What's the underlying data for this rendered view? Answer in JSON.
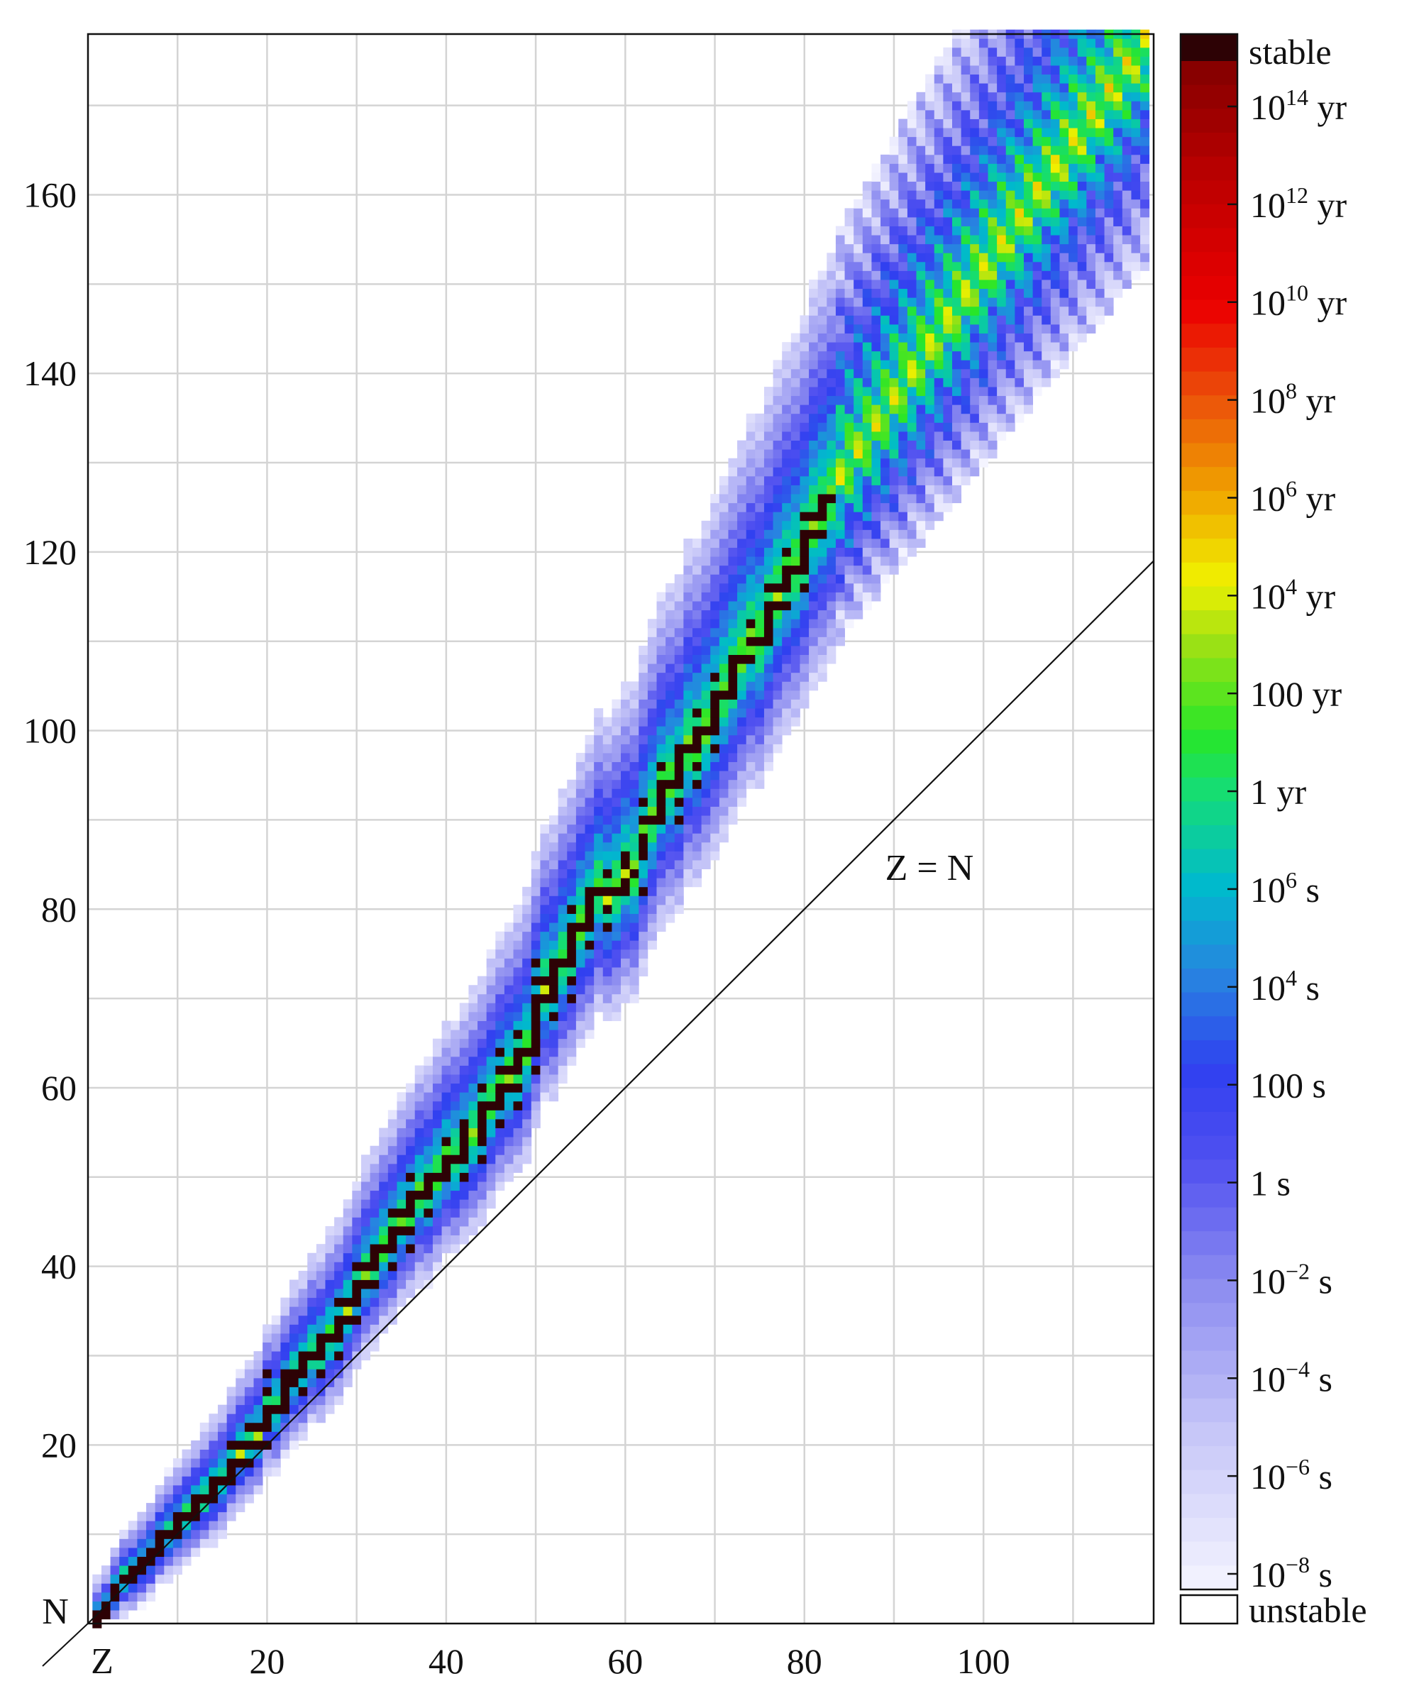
{
  "chart_data": {
    "type": "heatmap",
    "title": "",
    "xlabel": "Z",
    "ylabel": "N",
    "x_ticks": [
      20,
      40,
      60,
      80,
      100
    ],
    "y_ticks": [
      20,
      40,
      60,
      80,
      100,
      120,
      140,
      160
    ],
    "xlim": [
      0,
      119
    ],
    "ylim": [
      0,
      178
    ],
    "grid": true,
    "annotation": "Z = N",
    "reference_line": {
      "label": "Z = N",
      "from": [
        0,
        0
      ],
      "to": [
        119,
        119
      ]
    },
    "colorbar": {
      "position": "right",
      "top_label": "stable",
      "bottom_label": "unstable",
      "labels": [
        {
          "base": "10",
          "exp": "14",
          "unit": "yr"
        },
        {
          "base": "10",
          "exp": "12",
          "unit": "yr"
        },
        {
          "base": "10",
          "exp": "10",
          "unit": "yr"
        },
        {
          "base": "10",
          "exp": "8",
          "unit": "yr"
        },
        {
          "base": "10",
          "exp": "6",
          "unit": "yr"
        },
        {
          "base": "10",
          "exp": "4",
          "unit": "yr"
        },
        {
          "base": "100",
          "exp": "",
          "unit": "yr"
        },
        {
          "base": "1",
          "exp": "",
          "unit": "yr"
        },
        {
          "base": "10",
          "exp": "6",
          "unit": "s"
        },
        {
          "base": "10",
          "exp": "4",
          "unit": "s"
        },
        {
          "base": "100",
          "exp": "",
          "unit": "s"
        },
        {
          "base": "1",
          "exp": "",
          "unit": "s"
        },
        {
          "base": "10",
          "exp": "−2",
          "unit": "s"
        },
        {
          "base": "10",
          "exp": "−4",
          "unit": "s"
        },
        {
          "base": "10",
          "exp": "−6",
          "unit": "s"
        },
        {
          "base": "10",
          "exp": "−8",
          "unit": "s"
        }
      ]
    },
    "stable_nuclides": [
      [
        1,
        0
      ],
      [
        1,
        1
      ],
      [
        2,
        1
      ],
      [
        2,
        2
      ],
      [
        3,
        3
      ],
      [
        3,
        4
      ],
      [
        4,
        5
      ],
      [
        5,
        5
      ],
      [
        5,
        6
      ],
      [
        6,
        6
      ],
      [
        6,
        7
      ],
      [
        7,
        7
      ],
      [
        7,
        8
      ],
      [
        8,
        8
      ],
      [
        8,
        9
      ],
      [
        8,
        10
      ],
      [
        9,
        10
      ],
      [
        10,
        10
      ],
      [
        10,
        11
      ],
      [
        10,
        12
      ],
      [
        11,
        12
      ],
      [
        12,
        12
      ],
      [
        12,
        13
      ],
      [
        12,
        14
      ],
      [
        13,
        14
      ],
      [
        14,
        14
      ],
      [
        14,
        15
      ],
      [
        14,
        16
      ],
      [
        15,
        16
      ],
      [
        16,
        16
      ],
      [
        16,
        17
      ],
      [
        16,
        18
      ],
      [
        16,
        20
      ],
      [
        17,
        18
      ],
      [
        17,
        20
      ],
      [
        18,
        18
      ],
      [
        18,
        20
      ],
      [
        18,
        22
      ],
      [
        19,
        20
      ],
      [
        19,
        22
      ],
      [
        20,
        20
      ],
      [
        20,
        22
      ],
      [
        20,
        23
      ],
      [
        20,
        24
      ],
      [
        20,
        26
      ],
      [
        20,
        28
      ],
      [
        21,
        24
      ],
      [
        22,
        24
      ],
      [
        22,
        25
      ],
      [
        22,
        26
      ],
      [
        22,
        27
      ],
      [
        22,
        28
      ],
      [
        23,
        27
      ],
      [
        23,
        28
      ],
      [
        24,
        26
      ],
      [
        24,
        28
      ],
      [
        24,
        29
      ],
      [
        24,
        30
      ],
      [
        25,
        30
      ],
      [
        26,
        28
      ],
      [
        26,
        30
      ],
      [
        26,
        31
      ],
      [
        26,
        32
      ],
      [
        27,
        32
      ],
      [
        28,
        30
      ],
      [
        28,
        32
      ],
      [
        28,
        33
      ],
      [
        28,
        34
      ],
      [
        28,
        36
      ],
      [
        29,
        34
      ],
      [
        29,
        36
      ],
      [
        30,
        34
      ],
      [
        30,
        36
      ],
      [
        30,
        37
      ],
      [
        30,
        38
      ],
      [
        30,
        40
      ],
      [
        31,
        38
      ],
      [
        31,
        40
      ],
      [
        32,
        38
      ],
      [
        32,
        40
      ],
      [
        32,
        41
      ],
      [
        32,
        42
      ],
      [
        33,
        42
      ],
      [
        34,
        40
      ],
      [
        34,
        42
      ],
      [
        34,
        43
      ],
      [
        34,
        44
      ],
      [
        34,
        46
      ],
      [
        35,
        44
      ],
      [
        35,
        46
      ],
      [
        36,
        42
      ],
      [
        36,
        44
      ],
      [
        36,
        46
      ],
      [
        36,
        47
      ],
      [
        36,
        48
      ],
      [
        36,
        50
      ],
      [
        37,
        48
      ],
      [
        38,
        46
      ],
      [
        38,
        48
      ],
      [
        38,
        49
      ],
      [
        38,
        50
      ],
      [
        39,
        50
      ],
      [
        40,
        50
      ],
      [
        40,
        51
      ],
      [
        40,
        52
      ],
      [
        40,
        54
      ],
      [
        41,
        52
      ],
      [
        42,
        50
      ],
      [
        42,
        52
      ],
      [
        42,
        53
      ],
      [
        42,
        54
      ],
      [
        42,
        55
      ],
      [
        42,
        56
      ],
      [
        44,
        52
      ],
      [
        44,
        54
      ],
      [
        44,
        55
      ],
      [
        44,
        56
      ],
      [
        44,
        57
      ],
      [
        44,
        58
      ],
      [
        44,
        60
      ],
      [
        45,
        58
      ],
      [
        46,
        56
      ],
      [
        46,
        58
      ],
      [
        46,
        59
      ],
      [
        46,
        60
      ],
      [
        46,
        62
      ],
      [
        46,
        64
      ],
      [
        47,
        60
      ],
      [
        47,
        62
      ],
      [
        48,
        58
      ],
      [
        48,
        60
      ],
      [
        48,
        62
      ],
      [
        48,
        63
      ],
      [
        48,
        64
      ],
      [
        48,
        66
      ],
      [
        49,
        64
      ],
      [
        50,
        62
      ],
      [
        50,
        64
      ],
      [
        50,
        65
      ],
      [
        50,
        66
      ],
      [
        50,
        67
      ],
      [
        50,
        68
      ],
      [
        50,
        69
      ],
      [
        50,
        70
      ],
      [
        50,
        72
      ],
      [
        50,
        74
      ],
      [
        51,
        70
      ],
      [
        51,
        72
      ],
      [
        52,
        68
      ],
      [
        52,
        70
      ],
      [
        52,
        71
      ],
      [
        52,
        72
      ],
      [
        52,
        73
      ],
      [
        52,
        74
      ],
      [
        53,
        74
      ],
      [
        54,
        70
      ],
      [
        54,
        72
      ],
      [
        54,
        74
      ],
      [
        54,
        75
      ],
      [
        54,
        76
      ],
      [
        54,
        77
      ],
      [
        54,
        78
      ],
      [
        54,
        80
      ],
      [
        55,
        78
      ],
      [
        56,
        76
      ],
      [
        56,
        78
      ],
      [
        56,
        79
      ],
      [
        56,
        80
      ],
      [
        56,
        81
      ],
      [
        56,
        82
      ],
      [
        57,
        82
      ],
      [
        58,
        78
      ],
      [
        58,
        80
      ],
      [
        58,
        82
      ],
      [
        58,
        84
      ],
      [
        59,
        82
      ],
      [
        60,
        82
      ],
      [
        60,
        83
      ],
      [
        60,
        85
      ],
      [
        60,
        86
      ],
      [
        61,
        84
      ],
      [
        62,
        82
      ],
      [
        62,
        86
      ],
      [
        62,
        87
      ],
      [
        62,
        88
      ],
      [
        62,
        90
      ],
      [
        62,
        92
      ],
      [
        63,
        90
      ],
      [
        64,
        90
      ],
      [
        64,
        91
      ],
      [
        64,
        92
      ],
      [
        64,
        93
      ],
      [
        64,
        94
      ],
      [
        64,
        96
      ],
      [
        65,
        94
      ],
      [
        66,
        90
      ],
      [
        66,
        92
      ],
      [
        66,
        94
      ],
      [
        66,
        95
      ],
      [
        66,
        96
      ],
      [
        66,
        97
      ],
      [
        66,
        98
      ],
      [
        67,
        98
      ],
      [
        68,
        94
      ],
      [
        68,
        96
      ],
      [
        68,
        98
      ],
      [
        68,
        99
      ],
      [
        68,
        100
      ],
      [
        68,
        102
      ],
      [
        69,
        100
      ],
      [
        70,
        98
      ],
      [
        70,
        100
      ],
      [
        70,
        101
      ],
      [
        70,
        102
      ],
      [
        70,
        103
      ],
      [
        70,
        104
      ],
      [
        70,
        106
      ],
      [
        71,
        104
      ],
      [
        72,
        104
      ],
      [
        72,
        105
      ],
      [
        72,
        106
      ],
      [
        72,
        107
      ],
      [
        72,
        108
      ],
      [
        73,
        108
      ],
      [
        74,
        108
      ],
      [
        74,
        110
      ],
      [
        74,
        112
      ],
      [
        75,
        110
      ],
      [
        76,
        110
      ],
      [
        76,
        111
      ],
      [
        76,
        112
      ],
      [
        76,
        113
      ],
      [
        76,
        114
      ],
      [
        76,
        116
      ],
      [
        77,
        114
      ],
      [
        77,
        116
      ],
      [
        78,
        114
      ],
      [
        78,
        116
      ],
      [
        78,
        117
      ],
      [
        78,
        118
      ],
      [
        78,
        120
      ],
      [
        79,
        118
      ],
      [
        80,
        116
      ],
      [
        80,
        118
      ],
      [
        80,
        119
      ],
      [
        80,
        120
      ],
      [
        80,
        121
      ],
      [
        80,
        122
      ],
      [
        80,
        124
      ],
      [
        81,
        122
      ],
      [
        81,
        124
      ],
      [
        82,
        122
      ],
      [
        82,
        124
      ],
      [
        82,
        125
      ],
      [
        82,
        126
      ],
      [
        83,
        126
      ]
    ]
  }
}
